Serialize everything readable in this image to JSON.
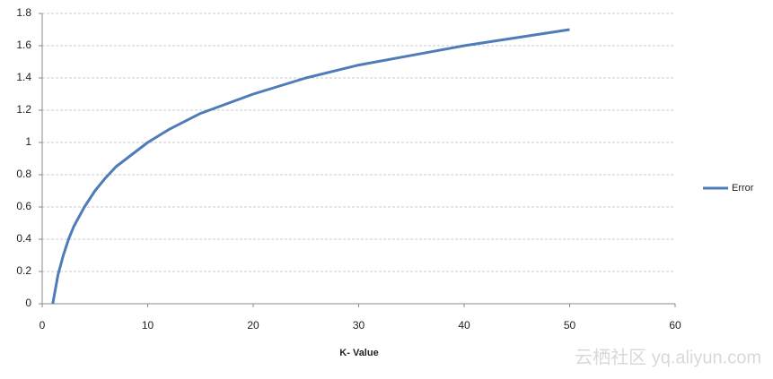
{
  "chart_data": {
    "type": "line",
    "x_label": "K- Value",
    "x": [
      1,
      1.5,
      2,
      2.5,
      3,
      4,
      5,
      6,
      7,
      8,
      10,
      12,
      15,
      20,
      25,
      30,
      35,
      40,
      45,
      50
    ],
    "series": [
      {
        "name": "Error",
        "color": "#4f7bb8",
        "values": [
          0,
          0.18,
          0.3,
          0.4,
          0.48,
          0.6,
          0.7,
          0.78,
          0.85,
          0.9,
          1,
          1.08,
          1.18,
          1.3,
          1.4,
          1.48,
          1.54,
          1.6,
          1.65,
          1.7
        ]
      }
    ],
    "xlim": [
      0,
      60
    ],
    "xticks": [
      0,
      10,
      20,
      30,
      40,
      50,
      60
    ],
    "ylim": [
      0,
      1.8
    ],
    "yticks": [
      0,
      0.2,
      0.4,
      0.6,
      0.8,
      1,
      1.2,
      1.4,
      1.6,
      1.8
    ],
    "grid": true,
    "legend": "right"
  },
  "watermark": "云栖社区 yq.aliyun.com"
}
